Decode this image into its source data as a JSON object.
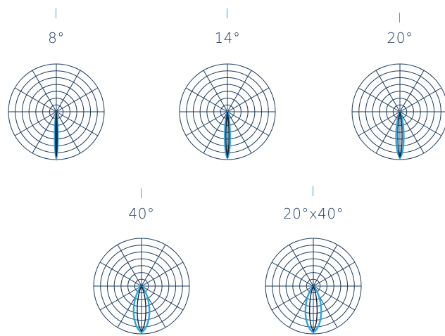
{
  "colors": {
    "grid": "#1b3a5c",
    "beam_outer": "#29a8e0",
    "beam_inner": "#12273f",
    "tick": "#29a8e0",
    "label": "#1b3a5c"
  },
  "beams": [
    {
      "id": "8",
      "label": "8°",
      "angle_deg": 8,
      "angle_b_deg": 8
    },
    {
      "id": "14",
      "label": "14°",
      "angle_deg": 14,
      "angle_b_deg": 14
    },
    {
      "id": "20",
      "label": "20°",
      "angle_deg": 20,
      "angle_b_deg": 20
    },
    {
      "id": "40",
      "label": "40°",
      "angle_deg": 40,
      "angle_b_deg": 40
    },
    {
      "id": "20x40",
      "label": "20°x40°",
      "angle_deg": 20,
      "angle_b_deg": 40
    }
  ],
  "polar_grid": {
    "rings": 7,
    "spokes": 12
  }
}
